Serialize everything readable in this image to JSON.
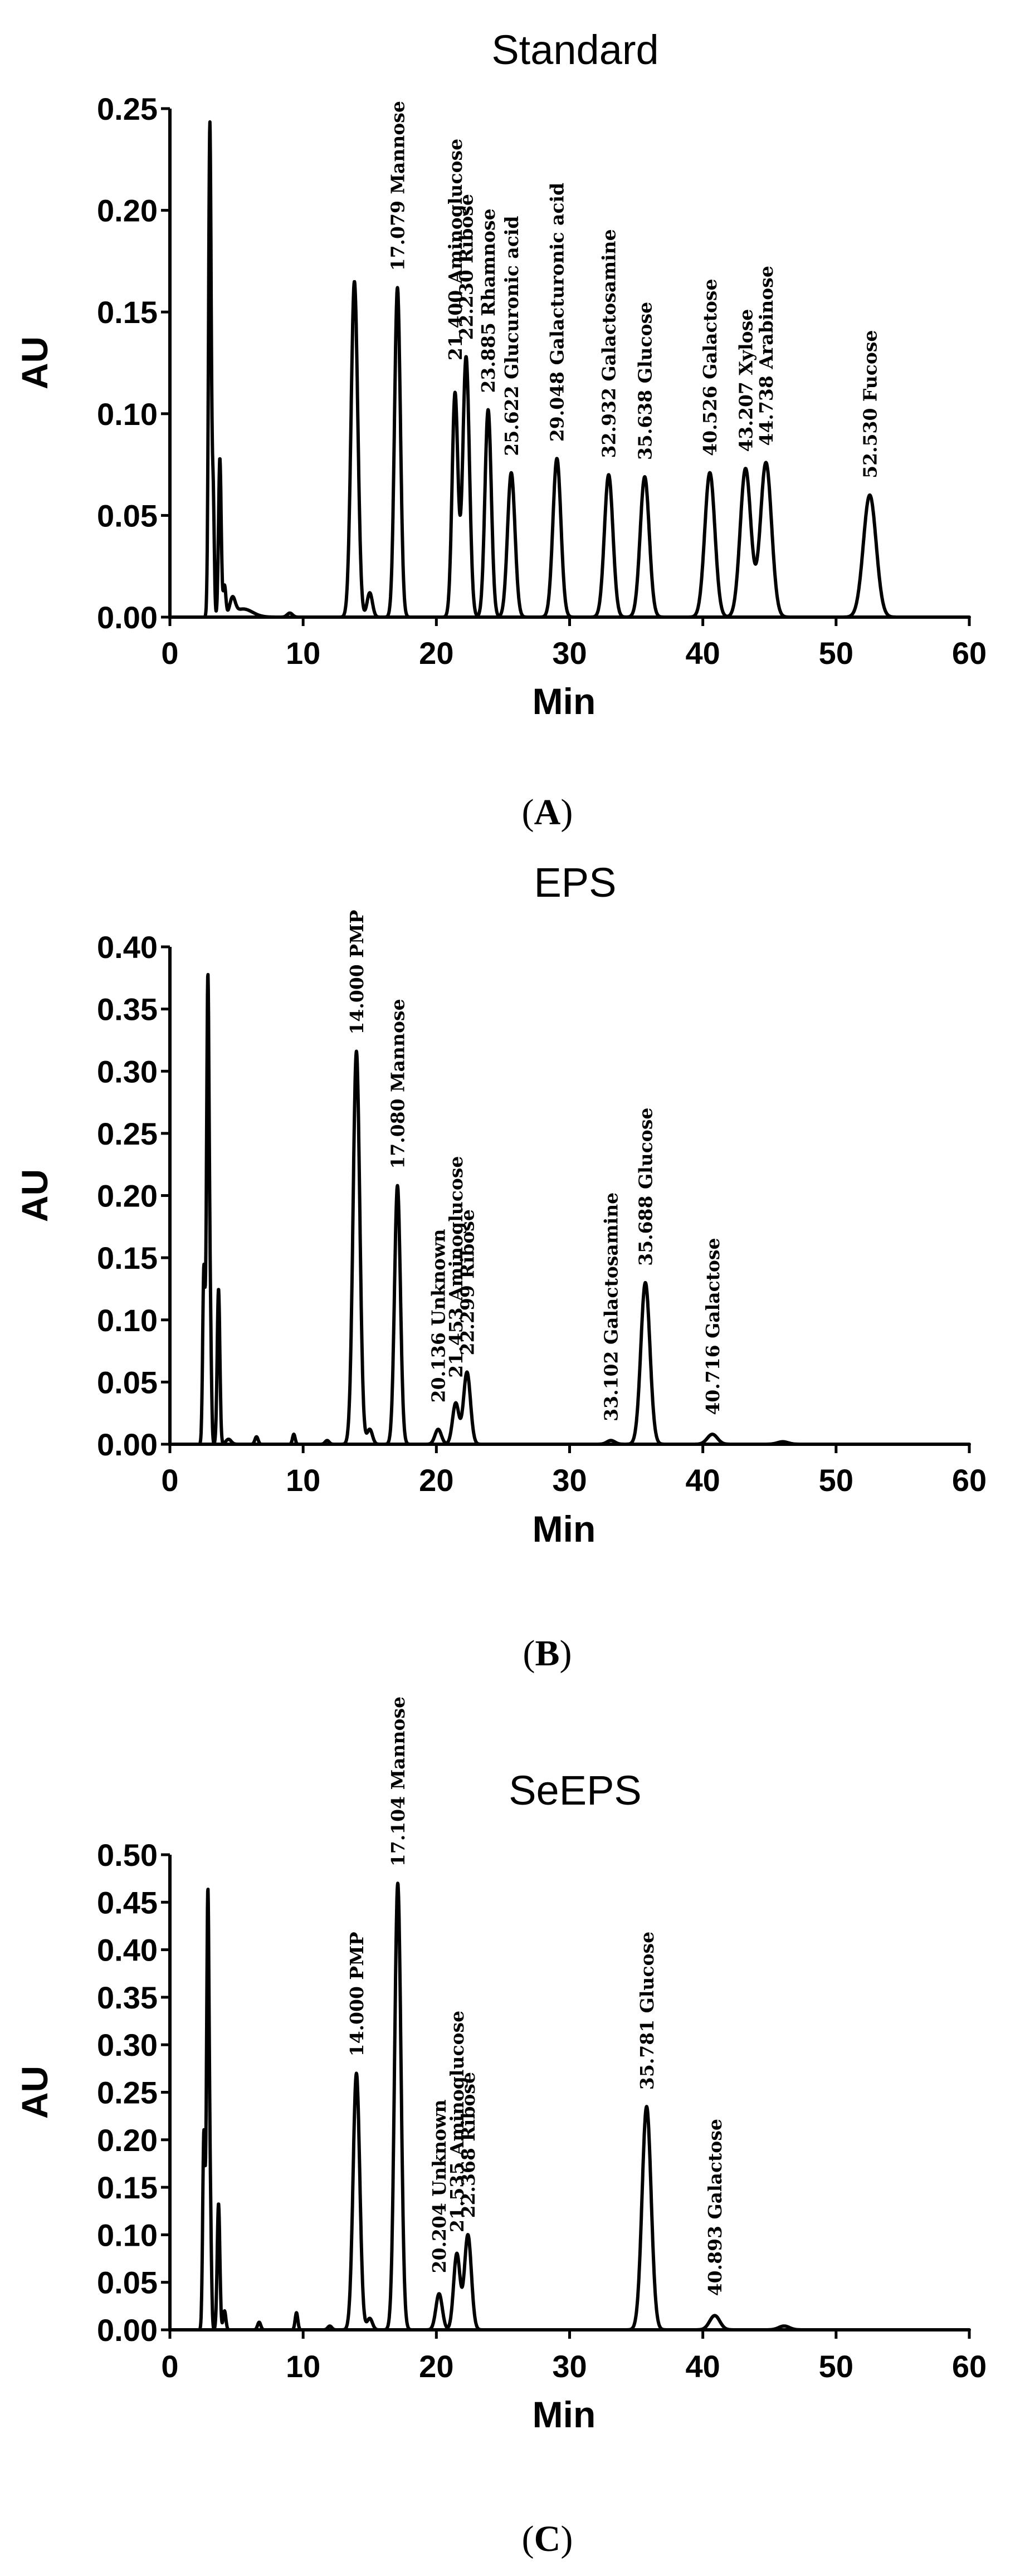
{
  "figure": {
    "colors": {
      "trace": "#000000",
      "axis": "#000000",
      "background": "#ffffff"
    }
  },
  "chart_data": [
    {
      "panel": "A",
      "type": "line",
      "title": "Standard",
      "caption": "(A)",
      "caption_letter": "A",
      "xlabel": "Min",
      "ylabel": "AU",
      "xlim": [
        0,
        60
      ],
      "ylim": [
        0,
        0.25
      ],
      "xticks": [
        0,
        10,
        20,
        30,
        40,
        50,
        60
      ],
      "xtick_labels": [
        "0",
        "10",
        "20",
        "30",
        "40",
        "50",
        "60"
      ],
      "yticks": [
        0,
        0.05,
        0.1,
        0.15,
        0.2,
        0.25
      ],
      "ytick_labels": [
        "0.00",
        "0.05",
        "0.10",
        "0.15",
        "0.20",
        "0.25"
      ],
      "grid": false,
      "series": [
        {
          "peaks": [
            {
              "x": 3.0,
              "y": 0.243,
              "w": 0.1
            },
            {
              "x": 3.25,
              "y": 0.058,
              "w": 0.08
            },
            {
              "x": 3.75,
              "y": 0.078,
              "w": 0.1
            },
            {
              "x": 4.1,
              "y": 0.015,
              "w": 0.1
            },
            {
              "x": 4.7,
              "y": 0.008,
              "w": 0.2
            },
            {
              "x": 5.5,
              "y": 0.004,
              "w": 0.7
            },
            {
              "x": 9.0,
              "y": 0.002,
              "w": 0.2
            },
            {
              "x": 13.85,
              "y": 0.165,
              "w": 0.25
            },
            {
              "x": 15.0,
              "y": 0.012,
              "w": 0.2
            },
            {
              "x": 17.079,
              "y": 0.162,
              "w": 0.22
            },
            {
              "x": 21.4,
              "y": 0.11,
              "w": 0.22
            },
            {
              "x": 22.23,
              "y": 0.128,
              "w": 0.25
            },
            {
              "x": 23.885,
              "y": 0.102,
              "w": 0.24
            },
            {
              "x": 25.622,
              "y": 0.071,
              "w": 0.28
            },
            {
              "x": 29.048,
              "y": 0.078,
              "w": 0.3
            },
            {
              "x": 32.932,
              "y": 0.07,
              "w": 0.32
            },
            {
              "x": 35.638,
              "y": 0.069,
              "w": 0.34
            },
            {
              "x": 40.526,
              "y": 0.071,
              "w": 0.38
            },
            {
              "x": 43.207,
              "y": 0.073,
              "w": 0.4
            },
            {
              "x": 44.738,
              "y": 0.076,
              "w": 0.42
            },
            {
              "x": 52.53,
              "y": 0.06,
              "w": 0.48
            }
          ]
        }
      ],
      "annotations": [
        {
          "x": 17.079,
          "y": 0.162,
          "text": "17.079 Mannose"
        },
        {
          "x": 21.4,
          "y": 0.118,
          "text": "21.400 Aminoglucose"
        },
        {
          "x": 22.23,
          "y": 0.128,
          "text": "22.230 Ribose"
        },
        {
          "x": 23.885,
          "y": 0.102,
          "text": "23.885 Rhamnose"
        },
        {
          "x": 25.622,
          "y": 0.071,
          "text": "25.622 Glucuronic acid"
        },
        {
          "x": 29.048,
          "y": 0.078,
          "text": "29.048 Galacturonic acid"
        },
        {
          "x": 32.932,
          "y": 0.07,
          "text": "32.932 Galactosamine"
        },
        {
          "x": 35.638,
          "y": 0.069,
          "text": "35.638 Glucose"
        },
        {
          "x": 40.526,
          "y": 0.071,
          "text": "40.526 Galactose"
        },
        {
          "x": 43.207,
          "y": 0.073,
          "text": "43.207 Xylose"
        },
        {
          "x": 44.738,
          "y": 0.076,
          "text": "44.738 Arabinose"
        },
        {
          "x": 52.53,
          "y": 0.06,
          "text": "52.530 Fucose"
        }
      ]
    },
    {
      "panel": "B",
      "type": "line",
      "title": "EPS",
      "caption": "(B)",
      "caption_letter": "B",
      "xlabel": "Min",
      "ylabel": "AU",
      "xlim": [
        0,
        60
      ],
      "ylim": [
        0,
        0.4
      ],
      "xticks": [
        0,
        10,
        20,
        30,
        40,
        50,
        60
      ],
      "xtick_labels": [
        "0",
        "10",
        "20",
        "30",
        "40",
        "50",
        "60"
      ],
      "yticks": [
        0,
        0.05,
        0.1,
        0.15,
        0.2,
        0.25,
        0.3,
        0.35,
        0.4
      ],
      "ytick_labels": [
        "0.00",
        "0.05",
        "0.10",
        "0.15",
        "0.20",
        "0.25",
        "0.30",
        "0.35",
        "0.40"
      ],
      "grid": false,
      "series": [
        {
          "peaks": [
            {
              "x": 2.55,
              "y": 0.14,
              "w": 0.09
            },
            {
              "x": 2.85,
              "y": 0.375,
              "w": 0.1
            },
            {
              "x": 3.05,
              "y": 0.07,
              "w": 0.08
            },
            {
              "x": 3.65,
              "y": 0.125,
              "w": 0.1
            },
            {
              "x": 4.4,
              "y": 0.004,
              "w": 0.2
            },
            {
              "x": 6.5,
              "y": 0.006,
              "w": 0.12
            },
            {
              "x": 9.3,
              "y": 0.008,
              "w": 0.1
            },
            {
              "x": 11.8,
              "y": 0.003,
              "w": 0.15
            },
            {
              "x": 14.0,
              "y": 0.316,
              "w": 0.25
            },
            {
              "x": 15.0,
              "y": 0.012,
              "w": 0.2
            },
            {
              "x": 17.08,
              "y": 0.208,
              "w": 0.22
            },
            {
              "x": 20.136,
              "y": 0.012,
              "w": 0.24
            },
            {
              "x": 21.453,
              "y": 0.033,
              "w": 0.24
            },
            {
              "x": 22.299,
              "y": 0.058,
              "w": 0.26
            },
            {
              "x": 33.102,
              "y": 0.003,
              "w": 0.3
            },
            {
              "x": 35.688,
              "y": 0.13,
              "w": 0.34
            },
            {
              "x": 40.716,
              "y": 0.008,
              "w": 0.38
            },
            {
              "x": 46.0,
              "y": 0.002,
              "w": 0.4
            }
          ]
        }
      ],
      "annotations": [
        {
          "x": 14.0,
          "y": 0.316,
          "text": "14.000 PMP"
        },
        {
          "x": 17.08,
          "y": 0.208,
          "text": "17.080 Mannose"
        },
        {
          "x": 20.136,
          "y": 0.02,
          "text": "20.136 Unknown"
        },
        {
          "x": 21.453,
          "y": 0.04,
          "text": "21.453 Aminoglucose"
        },
        {
          "x": 22.299,
          "y": 0.058,
          "text": "22.299 Ribose"
        },
        {
          "x": 33.102,
          "y": 0.005,
          "text": "33.102 Galactosamine"
        },
        {
          "x": 35.688,
          "y": 0.13,
          "text": "35.688 Glucose"
        },
        {
          "x": 40.716,
          "y": 0.01,
          "text": "40.716 Galactose"
        }
      ]
    },
    {
      "panel": "C",
      "type": "line",
      "title": "SeEPS",
      "caption": "(C)",
      "caption_letter": "C",
      "xlabel": "Min",
      "ylabel": "AU",
      "xlim": [
        0,
        60
      ],
      "ylim": [
        0,
        0.5
      ],
      "xticks": [
        0,
        10,
        20,
        30,
        40,
        50,
        60
      ],
      "xtick_labels": [
        "0",
        "10",
        "20",
        "30",
        "40",
        "50",
        "60"
      ],
      "yticks": [
        0,
        0.05,
        0.1,
        0.15,
        0.2,
        0.25,
        0.3,
        0.35,
        0.4,
        0.45,
        0.5
      ],
      "ytick_labels": [
        "0.00",
        "0.05",
        "0.10",
        "0.15",
        "0.20",
        "0.25",
        "0.30",
        "0.35",
        "0.40",
        "0.45",
        "0.50"
      ],
      "grid": false,
      "series": [
        {
          "peaks": [
            {
              "x": 2.55,
              "y": 0.205,
              "w": 0.09
            },
            {
              "x": 2.85,
              "y": 0.46,
              "w": 0.1
            },
            {
              "x": 3.05,
              "y": 0.09,
              "w": 0.08
            },
            {
              "x": 3.65,
              "y": 0.133,
              "w": 0.1
            },
            {
              "x": 4.1,
              "y": 0.02,
              "w": 0.1
            },
            {
              "x": 6.7,
              "y": 0.008,
              "w": 0.12
            },
            {
              "x": 9.5,
              "y": 0.018,
              "w": 0.1
            },
            {
              "x": 12.0,
              "y": 0.004,
              "w": 0.15
            },
            {
              "x": 14.0,
              "y": 0.27,
              "w": 0.25
            },
            {
              "x": 15.0,
              "y": 0.012,
              "w": 0.2
            },
            {
              "x": 17.104,
              "y": 0.47,
              "w": 0.24
            },
            {
              "x": 20.204,
              "y": 0.038,
              "w": 0.24
            },
            {
              "x": 21.535,
              "y": 0.08,
              "w": 0.24
            },
            {
              "x": 22.368,
              "y": 0.1,
              "w": 0.26
            },
            {
              "x": 35.781,
              "y": 0.235,
              "w": 0.34
            },
            {
              "x": 40.893,
              "y": 0.015,
              "w": 0.38
            },
            {
              "x": 46.1,
              "y": 0.004,
              "w": 0.4
            }
          ]
        }
      ],
      "annotations": [
        {
          "x": 14.0,
          "y": 0.27,
          "text": "14.000 PMP"
        },
        {
          "x": 17.104,
          "y": 0.47,
          "text": "17.104 Mannose"
        },
        {
          "x": 20.204,
          "y": 0.042,
          "text": "20.204 Unknown"
        },
        {
          "x": 21.535,
          "y": 0.085,
          "text": "21.535 Aminoglucose"
        },
        {
          "x": 22.368,
          "y": 0.1,
          "text": "22.368 Ribose"
        },
        {
          "x": 35.781,
          "y": 0.235,
          "text": "35.781 Glucose"
        },
        {
          "x": 40.893,
          "y": 0.018,
          "text": "40.893 Galactose"
        }
      ]
    }
  ]
}
